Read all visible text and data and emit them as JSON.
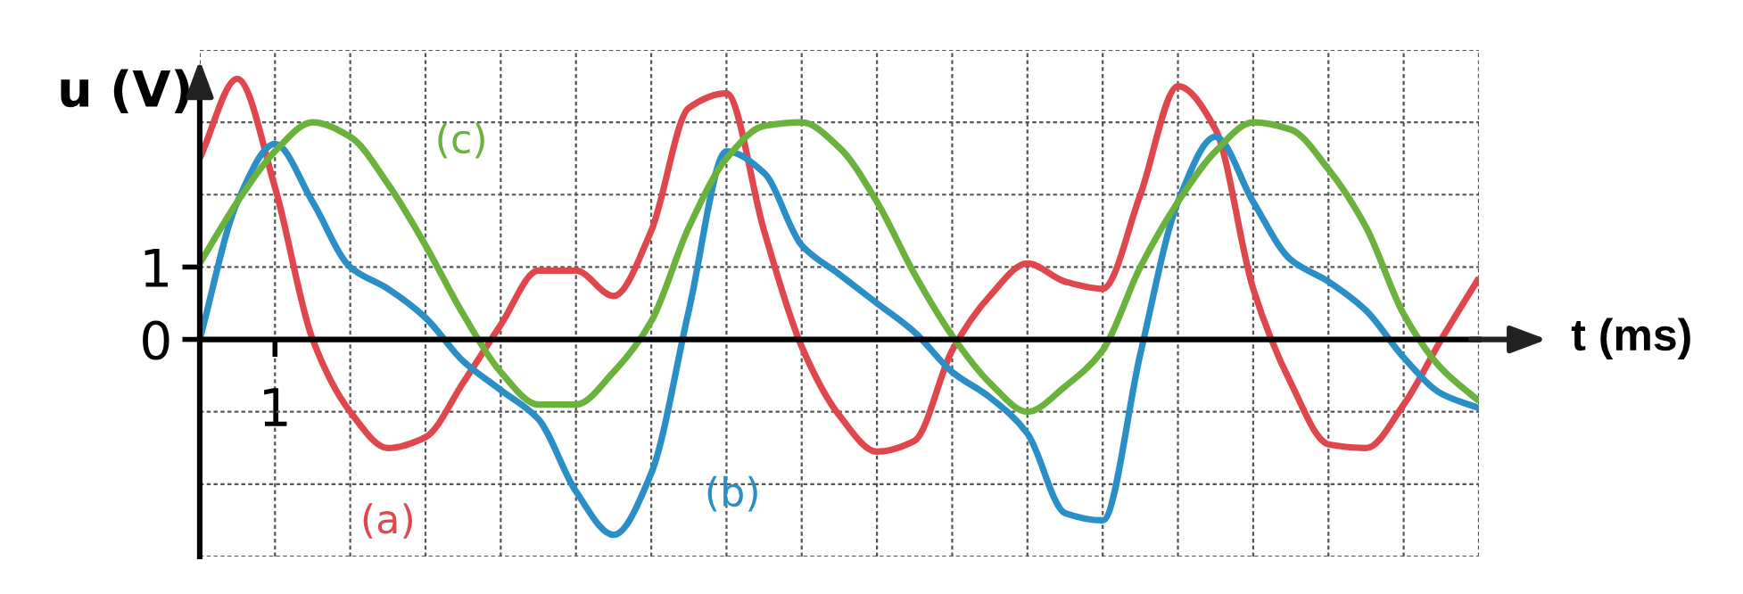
{
  "chart_data": {
    "type": "line",
    "xlabel": "t (ms)",
    "ylabel": "u (V)",
    "categories": [
      null,
      null,
      "1",
      null,
      null,
      null,
      null,
      null,
      null,
      null,
      null,
      null,
      null,
      null,
      null,
      null,
      null,
      null,
      null,
      null,
      null,
      null,
      null,
      null,
      null,
      null,
      null,
      null,
      null,
      null,
      null,
      null,
      null,
      null,
      null
    ],
    "ylim": [
      -3,
      4
    ],
    "yticks": [
      {
        "value": -3,
        "label": null
      },
      {
        "value": -2,
        "label": null
      },
      {
        "value": -1,
        "label": null
      },
      0,
      1,
      {
        "value": 2,
        "label": null
      },
      {
        "value": 3,
        "label": null
      },
      {
        "value": 4,
        "label": null
      }
    ],
    "grid": true,
    "line_style": "solid",
    "series": [
      {
        "name": "(a)",
        "color": "#e0474c",
        "values": [
          2.5,
          3.6,
          2.1,
          0,
          -1.0,
          -1.5,
          -1.35,
          -0.6,
          0.2,
          0.95,
          0.95,
          0.6,
          1.5,
          3.2,
          3.4,
          1.5,
          -0.1,
          -1.05,
          -1.55,
          -1.4,
          -0.15,
          0.6,
          1.05,
          0.8,
          0.7,
          2.0,
          3.5,
          2.9,
          0.7,
          -0.6,
          -1.45,
          -1.5,
          -0.9,
          0,
          0.85
        ]
      },
      {
        "name": "(b)",
        "color": "#2a8fc7",
        "values": [
          0,
          1.9,
          2.7,
          1.9,
          1.0,
          0.7,
          0.3,
          -0.3,
          -0.7,
          -1.1,
          -2.1,
          -2.7,
          -1.85,
          0.4,
          2.6,
          2.3,
          1.3,
          0.9,
          0.5,
          0.1,
          -0.45,
          -0.8,
          -1.3,
          -2.4,
          -2.5,
          -0.2,
          1.9,
          2.8,
          1.9,
          1.1,
          0.8,
          0.4,
          -0.25,
          -0.75,
          -0.95
        ]
      },
      {
        "name": "(c)",
        "color": "#6ab23c",
        "values": [
          1.05,
          1.9,
          2.6,
          3.0,
          2.8,
          2.15,
          1.3,
          0.35,
          -0.45,
          -0.9,
          -0.9,
          -0.45,
          0.25,
          1.55,
          2.5,
          2.95,
          3.0,
          2.65,
          1.9,
          0.9,
          0.05,
          -0.6,
          -1.0,
          -0.65,
          -0.15,
          1.0,
          1.9,
          2.6,
          3.0,
          2.9,
          2.35,
          1.55,
          0.35,
          -0.4,
          -0.85
        ]
      }
    ]
  }
}
